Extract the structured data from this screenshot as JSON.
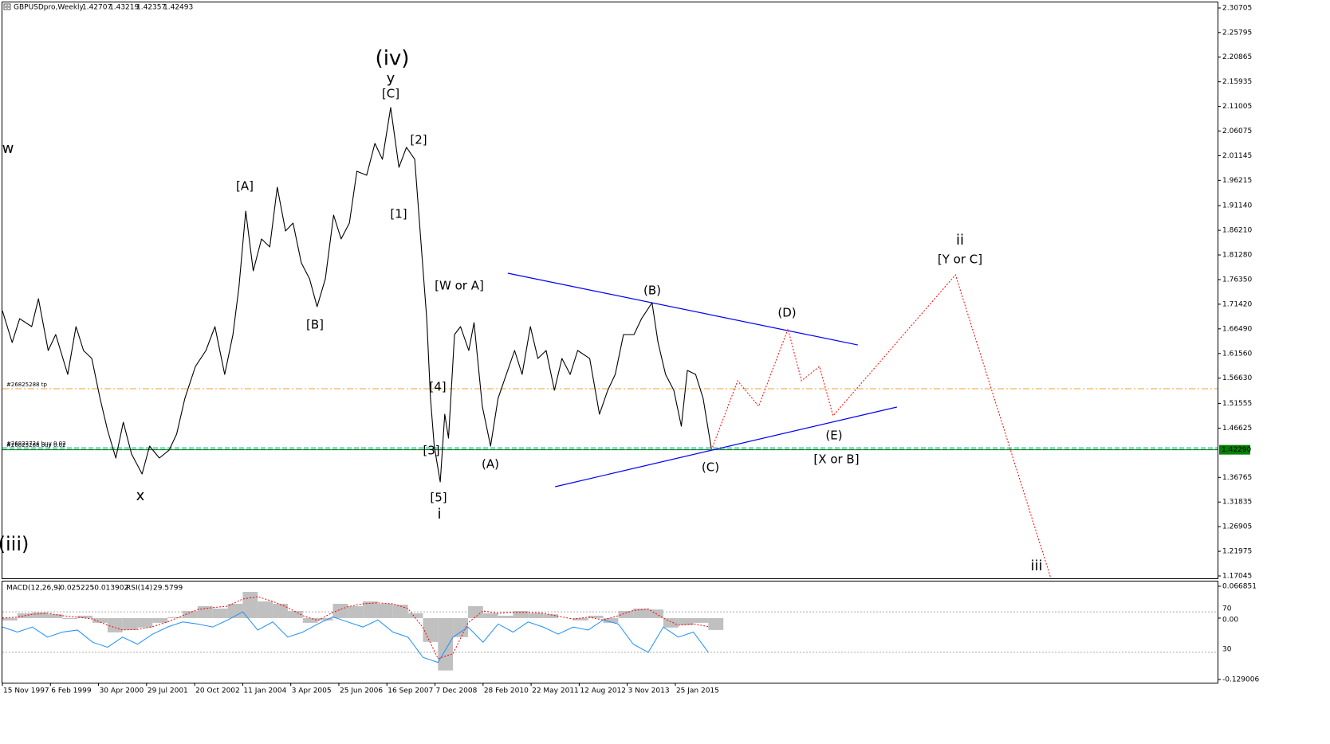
{
  "chart_data": {
    "type": "line",
    "title": "GBPUSDpro,Weekly",
    "quote": [
      1.42707,
      1.43219,
      1.42357,
      1.42493
    ],
    "color": "#000000",
    "x": [
      0,
      13,
      23,
      39,
      48,
      61,
      71,
      87,
      98,
      108,
      119,
      130,
      140,
      151,
      161,
      172,
      186,
      196,
      209,
      222,
      232,
      243,
      257,
      271,
      283,
      296,
      307,
      315,
      324,
      334,
      345,
      356,
      366,
      377,
      387,
      398,
      409,
      419,
      430,
      441,
      451,
      462,
      472,
      485,
      496,
      506,
      517,
      528,
      538,
      549,
      557,
      565,
      570,
      575,
      583,
      589,
      594,
      602,
      610,
      621,
      628,
      639,
      650,
      660,
      671,
      682,
      692,
      703,
      713,
      724,
      735,
      745,
      756,
      766,
      782,
      795,
      806,
      816,
      827,
      841,
      851,
      865,
      873,
      883,
      894,
      904,
      912,
      923,
      933,
      944
    ],
    "values": [
      1.7013,
      1.6375,
      1.6853,
      1.6694,
      1.7252,
      1.6216,
      1.6535,
      1.5738,
      1.6694,
      1.6216,
      1.6056,
      1.5259,
      1.4622,
      1.4064,
      1.4781,
      1.4143,
      1.3745,
      1.4303,
      1.4064,
      1.4223,
      1.4542,
      1.5259,
      1.5897,
      1.6216,
      1.6694,
      1.5738,
      1.6535,
      1.7491,
      1.9005,
      1.781,
      1.8448,
      1.8288,
      1.9484,
      1.8607,
      1.8766,
      1.7969,
      1.765,
      1.7093,
      1.765,
      1.8926,
      1.8448,
      1.8766,
      1.9803,
      1.9723,
      2.036,
      2.0042,
      2.1078,
      1.9882,
      2.0281,
      2.0042,
      1.8448,
      1.6853,
      1.5259,
      1.4303,
      1.3586,
      1.4941,
      1.4462,
      1.6535,
      1.6694,
      1.6216,
      1.6774,
      1.51,
      1.4303,
      1.5259,
      1.5738,
      1.6216,
      1.5738,
      1.6694,
      1.6056,
      1.6216,
      1.5419,
      1.6056,
      1.5738,
      1.6216,
      1.6056,
      1.4941,
      1.5419,
      1.5738,
      1.6535,
      1.6535,
      1.6853,
      1.7172,
      1.6375,
      1.5738,
      1.5419,
      1.4701,
      1.5817,
      1.5738,
      1.5259,
      1.4249
    ],
    "xlim": [
      0,
      1618
    ],
    "xticks": [
      {
        "value": 0,
        "label": "15 Nov 1997"
      },
      {
        "value": 64,
        "label": "6 Feb 1999"
      },
      {
        "value": 128,
        "label": "30 Apr 2000"
      },
      {
        "value": 192,
        "label": "29 Jul 2001"
      },
      {
        "value": 256,
        "label": "20 Oct 2002"
      },
      {
        "value": 320,
        "label": "11 Jan 2004"
      },
      {
        "value": 384,
        "label": "3 Apr 2005"
      },
      {
        "value": 448,
        "label": "25 Jun 2006"
      },
      {
        "value": 512,
        "label": "16 Sep 2007"
      },
      {
        "value": 576,
        "label": "7 Dec 2008"
      },
      {
        "value": 640,
        "label": "28 Feb 2010"
      },
      {
        "value": 704,
        "label": "22 May 2011"
      },
      {
        "value": 768,
        "label": "12 Aug 2012"
      },
      {
        "value": 832,
        "label": "3 Nov 2013"
      },
      {
        "value": 896,
        "label": "25 Jan 2015"
      }
    ],
    "ylim": [
      1.1657,
      2.3182
    ],
    "yticks": [
      2.30705,
      2.25795,
      2.20865,
      2.15935,
      2.11005,
      2.06075,
      2.01145,
      1.96215,
      {
        "value": 1.9114,
        "label": "1.91140"
      },
      {
        "value": 1.8621,
        "label": "1.86210"
      },
      {
        "value": 1.8128,
        "label": "1.81280"
      },
      {
        "value": 1.7635,
        "label": "1.76350"
      },
      {
        "value": 1.7142,
        "label": "1.71420"
      },
      {
        "value": 1.6649,
        "label": "1.66490"
      },
      {
        "value": 1.6156,
        "label": "1.61560"
      },
      {
        "value": 1.5663,
        "label": "1.56630"
      },
      1.51555,
      1.46625,
      1.36765,
      1.31835,
      1.26905,
      1.21975,
      1.17045
    ],
    "current_price": {
      "value": 1.4229,
      "label": "1.42290"
    },
    "current_color": "#008000",
    "projection": {
      "x": [
        944,
        979,
        1007,
        1046,
        1064,
        1088,
        1106,
        1269,
        1396
      ],
      "values": [
        1.4223,
        1.561,
        1.51,
        1.6646,
        1.561,
        1.5897,
        1.4909,
        1.773,
        1.1657
      ],
      "color": "#ff0000"
    },
    "trendline_color": "#0000ff",
    "trendlines": [
      {
        "x": [
          673,
          1139
        ],
        "values": [
          1.7762,
          1.6327
        ]
      },
      {
        "x": [
          736,
          1191
        ],
        "values": [
          1.349,
          1.5084
        ]
      }
    ],
    "levels": [
      {
        "label": "#26825288 tp",
        "value": 1.5451,
        "color": "#f0a030"
      },
      {
        "label": "#26823724 buy 0.02",
        "value": 1.4271,
        "color": "#20b2aa"
      },
      {
        "label": "#26825288 buy 0.02",
        "value": 1.424,
        "color": "#20b2aa"
      }
    ],
    "annotations": [
      {
        "text": "(iv)",
        "color": "#0000ff"
      },
      {
        "text": "y",
        "color": "#8b0000"
      },
      {
        "text": "[C]",
        "color": "#2e7d32"
      },
      {
        "text": "[2]",
        "color": "#2e7d32"
      },
      {
        "text": "[A]",
        "color": "#2e7d32"
      },
      {
        "text": "[1]",
        "color": "#2e7d32"
      },
      {
        "text": "w",
        "color": "#8b0000"
      },
      {
        "text": "[W or A]",
        "color": "#2e7d32"
      },
      {
        "text": "[B]",
        "color": "#2e7d32"
      },
      {
        "text": "(B)",
        "color": "#0000ff"
      },
      {
        "text": "(D)",
        "color": "#0000ff"
      },
      {
        "text": "ii",
        "color": "#8b0000"
      },
      {
        "text": "[Y or C]",
        "color": "#2e7d32"
      },
      {
        "text": "[4]",
        "color": "#2e7d32"
      },
      {
        "text": "(E)",
        "color": "#0000ff"
      },
      {
        "text": "[3]",
        "color": "#2e7d32"
      },
      {
        "text": "(A)",
        "color": "#0000ff"
      },
      {
        "text": "(C)",
        "color": "#0000ff"
      },
      {
        "text": "[X or B]",
        "color": "#2e7d32"
      },
      {
        "text": "[5]",
        "color": "#2e7d32"
      },
      {
        "text": "x",
        "color": "#8b0000"
      },
      {
        "text": "i",
        "color": "#8b0000"
      },
      {
        "text": "(iii)",
        "color": "#0000ff"
      },
      {
        "text": "iii",
        "color": "#8b0000"
      }
    ],
    "indicator": {
      "macd_title": "MACD(12,26,9)",
      "macd_quote": [
        -0.025225,
        -0.013902
      ],
      "rsi_title": "RSI(14)",
      "rsi_quote": 29.5799,
      "x": [
        0,
        20,
        40,
        60,
        80,
        100,
        120,
        140,
        160,
        180,
        200,
        220,
        240,
        260,
        280,
        300,
        320,
        340,
        360,
        380,
        400,
        420,
        440,
        460,
        480,
        500,
        520,
        540,
        560,
        580,
        600,
        620,
        640,
        660,
        680,
        700,
        720,
        740,
        760,
        780,
        800,
        820,
        840,
        860,
        880,
        900,
        920,
        940
      ],
      "macd": [
        -0.005,
        0.01,
        0.012,
        0.008,
        -0.002,
        0.005,
        -0.01,
        -0.03,
        -0.025,
        -0.02,
        -0.01,
        0.002,
        0.015,
        0.025,
        0.02,
        0.03,
        0.055,
        0.035,
        0.03,
        0.015,
        -0.01,
        -0.005,
        0.03,
        0.025,
        0.035,
        0.03,
        0.028,
        0.01,
        -0.05,
        -0.11,
        -0.04,
        0.025,
        0.01,
        0.005,
        0.015,
        0.01,
        0.008,
        0,
        -0.005,
        0.005,
        -0.01,
        0.015,
        0.02,
        0.018,
        -0.02,
        -0.015,
        -0.01,
        -0.025
      ],
      "signal": [
        0,
        0.002,
        0.008,
        0.01,
        0.005,
        0.002,
        -0.002,
        -0.015,
        -0.025,
        -0.024,
        -0.018,
        -0.008,
        0.005,
        0.018,
        0.022,
        0.025,
        0.04,
        0.045,
        0.035,
        0.022,
        0.005,
        -0.005,
        0.012,
        0.024,
        0.03,
        0.032,
        0.03,
        0.02,
        -0.02,
        -0.085,
        -0.075,
        -0.01,
        0.015,
        0.01,
        0.012,
        0.012,
        0.01,
        0.004,
        -0.002,
        0.002,
        -0.004,
        0.005,
        0.016,
        0.019,
        0,
        -0.015,
        -0.012,
        -0.018
      ],
      "rsi": [
        55,
        50,
        55,
        45,
        50,
        52,
        40,
        35,
        45,
        38,
        48,
        55,
        60,
        58,
        55,
        62,
        70,
        52,
        60,
        45,
        50,
        58,
        65,
        60,
        55,
        62,
        50,
        45,
        25,
        20,
        45,
        55,
        40,
        58,
        50,
        60,
        55,
        48,
        55,
        52,
        62,
        58,
        38,
        30,
        55,
        45,
        50,
        30
      ],
      "macd_color": "#c0c0c0",
      "signal_color": "#ff0000",
      "rsi_color": "#1e90ff",
      "ylim": [
        -0.1356,
        0.0768
      ],
      "yticks": [
        0.066851,
        {
          "value": 0,
          "label": "0.00"
        },
        -0.129006
      ],
      "rsi_ylim": [
        0,
        100
      ],
      "rsi_yticks": [
        70,
        30
      ]
    }
  }
}
